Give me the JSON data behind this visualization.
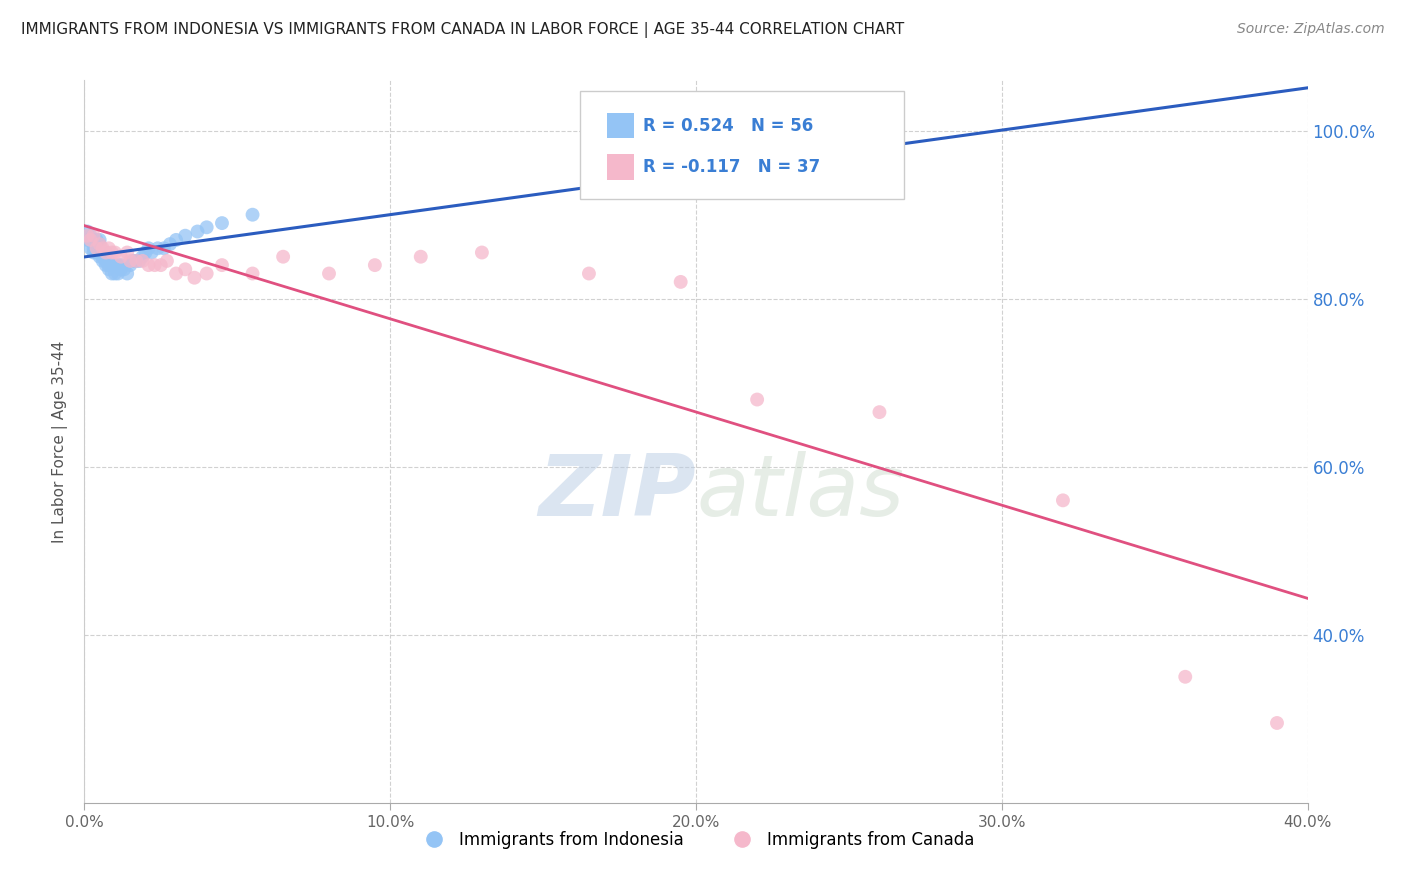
{
  "title": "IMMIGRANTS FROM INDONESIA VS IMMIGRANTS FROM CANADA IN LABOR FORCE | AGE 35-44 CORRELATION CHART",
  "source": "Source: ZipAtlas.com",
  "ylabel": "In Labor Force | Age 35-44",
  "xlim": [
    0.0,
    0.4
  ],
  "ylim": [
    0.2,
    1.06
  ],
  "x_ticks": [
    0.0,
    0.1,
    0.2,
    0.3,
    0.4
  ],
  "x_tick_labels": [
    "0.0%",
    "10.0%",
    "20.0%",
    "30.0%",
    "40.0%"
  ],
  "y_ticks": [
    0.4,
    0.6,
    0.8,
    1.0
  ],
  "y_tick_labels": [
    "40.0%",
    "60.0%",
    "80.0%",
    "100.0%"
  ],
  "indonesia_color": "#94c4f5",
  "canada_color": "#f5b8cb",
  "indonesia_R": 0.524,
  "indonesia_N": 56,
  "canada_R": -0.117,
  "canada_N": 37,
  "indonesia_line_color": "#2b5cbf",
  "canada_line_color": "#e05080",
  "legend_color": "#3a7ed4",
  "watermark_color": "#c8d8ee",
  "background_color": "#ffffff",
  "indonesia_x": [
    0.001,
    0.001,
    0.001,
    0.002,
    0.002,
    0.002,
    0.002,
    0.003,
    0.003,
    0.003,
    0.003,
    0.004,
    0.004,
    0.004,
    0.004,
    0.005,
    0.005,
    0.005,
    0.005,
    0.005,
    0.006,
    0.006,
    0.006,
    0.007,
    0.007,
    0.007,
    0.008,
    0.008,
    0.008,
    0.009,
    0.009,
    0.01,
    0.01,
    0.011,
    0.011,
    0.012,
    0.012,
    0.013,
    0.014,
    0.015,
    0.016,
    0.017,
    0.018,
    0.019,
    0.02,
    0.021,
    0.022,
    0.024,
    0.026,
    0.028,
    0.03,
    0.033,
    0.037,
    0.04,
    0.045,
    0.055
  ],
  "indonesia_y": [
    0.88,
    0.875,
    0.87,
    0.87,
    0.86,
    0.87,
    0.875,
    0.855,
    0.86,
    0.865,
    0.87,
    0.855,
    0.86,
    0.865,
    0.87,
    0.85,
    0.855,
    0.86,
    0.865,
    0.87,
    0.845,
    0.85,
    0.855,
    0.84,
    0.845,
    0.855,
    0.835,
    0.84,
    0.845,
    0.83,
    0.84,
    0.83,
    0.84,
    0.83,
    0.84,
    0.835,
    0.84,
    0.835,
    0.83,
    0.84,
    0.845,
    0.845,
    0.845,
    0.85,
    0.855,
    0.86,
    0.855,
    0.86,
    0.86,
    0.865,
    0.87,
    0.875,
    0.88,
    0.885,
    0.89,
    0.9
  ],
  "canada_x": [
    0.001,
    0.002,
    0.003,
    0.004,
    0.005,
    0.006,
    0.007,
    0.008,
    0.009,
    0.01,
    0.012,
    0.014,
    0.015,
    0.017,
    0.019,
    0.021,
    0.023,
    0.025,
    0.027,
    0.03,
    0.033,
    0.036,
    0.04,
    0.045,
    0.055,
    0.065,
    0.08,
    0.095,
    0.11,
    0.13,
    0.165,
    0.195,
    0.22,
    0.26,
    0.32,
    0.36,
    0.39
  ],
  "canada_y": [
    0.875,
    0.87,
    0.875,
    0.86,
    0.865,
    0.86,
    0.855,
    0.86,
    0.855,
    0.855,
    0.85,
    0.855,
    0.845,
    0.845,
    0.845,
    0.84,
    0.84,
    0.84,
    0.845,
    0.83,
    0.835,
    0.825,
    0.83,
    0.84,
    0.83,
    0.85,
    0.83,
    0.84,
    0.85,
    0.855,
    0.83,
    0.82,
    0.68,
    0.665,
    0.56,
    0.35,
    0.295
  ]
}
